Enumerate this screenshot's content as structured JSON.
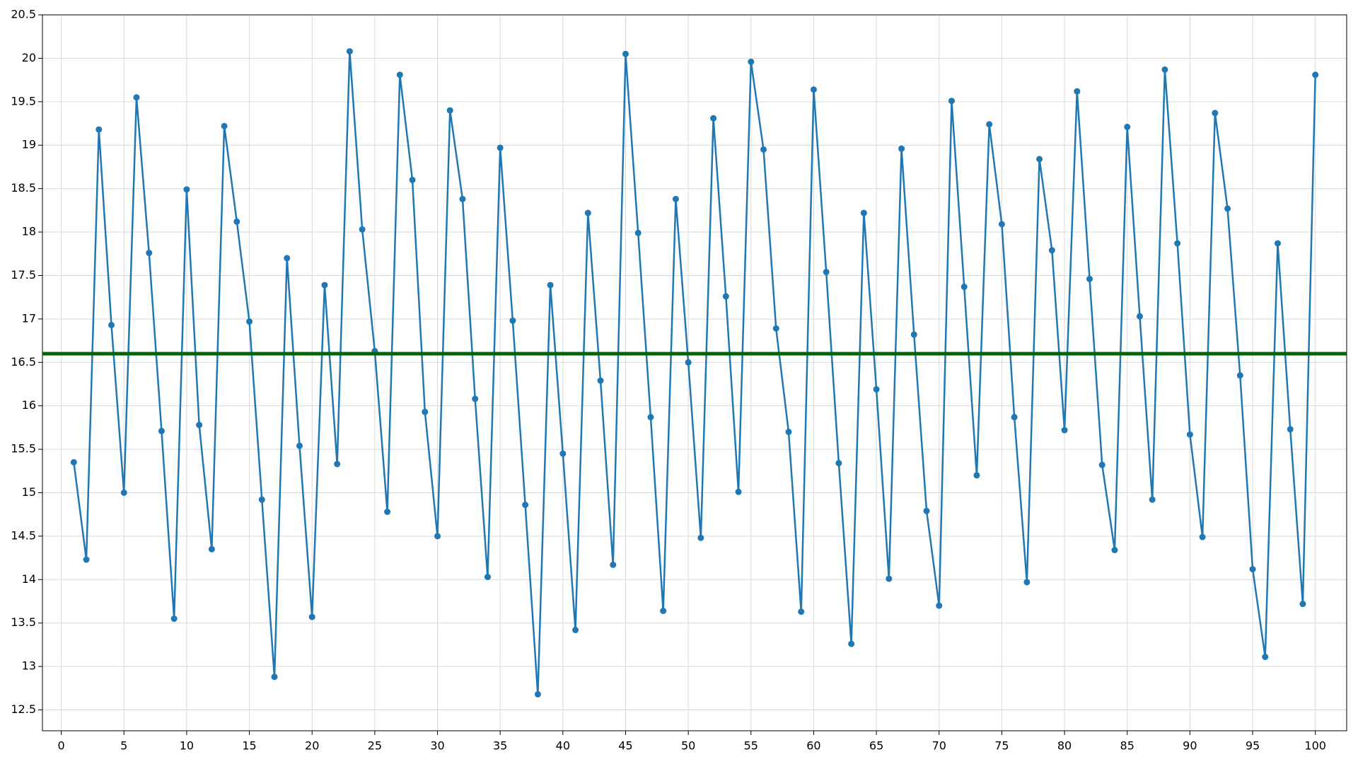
{
  "chart_data": {
    "type": "line",
    "x": [
      1,
      2,
      3,
      4,
      5,
      6,
      7,
      8,
      9,
      10,
      11,
      12,
      13,
      14,
      15,
      16,
      17,
      18,
      19,
      20,
      21,
      22,
      23,
      24,
      25,
      26,
      27,
      28,
      29,
      30,
      31,
      32,
      33,
      34,
      35,
      36,
      37,
      38,
      39,
      40,
      41,
      42,
      43,
      44,
      45,
      46,
      47,
      48,
      49,
      50,
      51,
      52,
      53,
      54,
      55,
      56,
      57,
      58,
      59,
      60,
      61,
      62,
      63,
      64,
      65,
      66,
      67,
      68,
      69,
      70,
      71,
      72,
      73,
      74,
      75,
      76,
      77,
      78,
      79,
      80,
      81,
      82,
      83,
      84,
      85,
      86,
      87,
      88,
      89,
      90,
      91,
      92,
      93,
      94,
      95,
      96,
      97,
      98,
      99,
      100
    ],
    "series": [
      {
        "color": "#1f77b4",
        "values": [
          15.35,
          14.23,
          19.18,
          16.93,
          15.0,
          19.55,
          17.76,
          15.71,
          13.55,
          18.49,
          15.78,
          14.35,
          19.22,
          18.12,
          16.97,
          14.92,
          12.88,
          17.7,
          15.54,
          13.57,
          17.39,
          15.33,
          20.08,
          18.03,
          16.63,
          14.78,
          19.81,
          18.6,
          15.93,
          14.5,
          19.4,
          18.38,
          16.08,
          14.03,
          18.97,
          16.98,
          14.86,
          12.68,
          17.39,
          15.45,
          13.42,
          18.22,
          16.29,
          14.17,
          20.05,
          17.99,
          15.87,
          13.64,
          18.38,
          16.5,
          14.48,
          19.31,
          17.26,
          15.01,
          19.96,
          18.95,
          16.89,
          15.7,
          13.63,
          19.64,
          17.54,
          15.34,
          13.26,
          18.22,
          16.19,
          14.01,
          18.96,
          16.82,
          14.79,
          13.7,
          19.51,
          17.37,
          15.2,
          19.24,
          18.09,
          15.87,
          13.97,
          18.84,
          17.79,
          15.72,
          19.62,
          17.46,
          15.32,
          14.34,
          19.21,
          17.03,
          14.92,
          19.87,
          17.87,
          15.67,
          14.49,
          19.37,
          18.27,
          16.35,
          14.12,
          13.11,
          17.87,
          15.73,
          13.72,
          19.81
        ]
      }
    ],
    "hline": {
      "value": 16.6,
      "color": "#006400"
    },
    "xlim": [
      -1.5,
      102.5
    ],
    "xticks": [
      0,
      5,
      10,
      15,
      20,
      25,
      30,
      35,
      40,
      45,
      50,
      55,
      60,
      65,
      70,
      75,
      80,
      85,
      90,
      95,
      100
    ],
    "ylim": [
      12.26,
      20.5
    ],
    "yticks": [
      12.5,
      13,
      13.5,
      14,
      14.5,
      15,
      15.5,
      16,
      16.5,
      17,
      17.5,
      18,
      18.5,
      19,
      19.5,
      20,
      20.5
    ],
    "grid": true
  }
}
